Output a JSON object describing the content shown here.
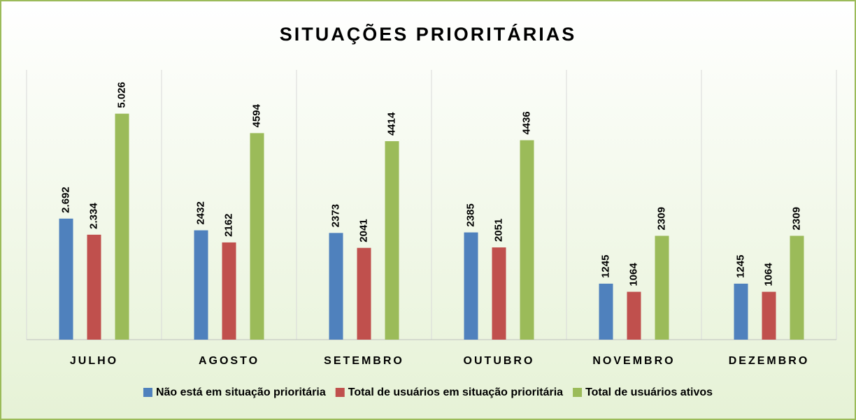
{
  "chart_data": {
    "type": "bar",
    "title": "SITUAÇÕES PRIORITÁRIAS",
    "categories": [
      "JULHO",
      "AGOSTO",
      "SETEMBRO",
      "OUTUBRO",
      "NOVEMBRO",
      "DEZEMBRO"
    ],
    "series": [
      {
        "name": "Não está em situação prioritária",
        "color": "#4f81bd",
        "values": [
          2692,
          2432,
          2373,
          2385,
          1245,
          1245
        ],
        "value_labels": [
          "2.692",
          "2432",
          "2373",
          "2385",
          "1245",
          "1245"
        ]
      },
      {
        "name": "Total de usuários em situação prioritária",
        "color": "#c0504d",
        "values": [
          2334,
          2162,
          2041,
          2051,
          1064,
          1064
        ],
        "value_labels": [
          "2.334",
          "2162",
          "2041",
          "2051",
          "1064",
          "1064"
        ]
      },
      {
        "name": "Total de usuários ativos",
        "color": "#9bbb59",
        "values": [
          5026,
          4594,
          4414,
          4436,
          2309,
          2309
        ],
        "value_labels": [
          "5.026",
          "4594",
          "4414",
          "4436",
          "2309",
          "2309"
        ]
      }
    ],
    "ylim": [
      0,
      6000
    ]
  }
}
